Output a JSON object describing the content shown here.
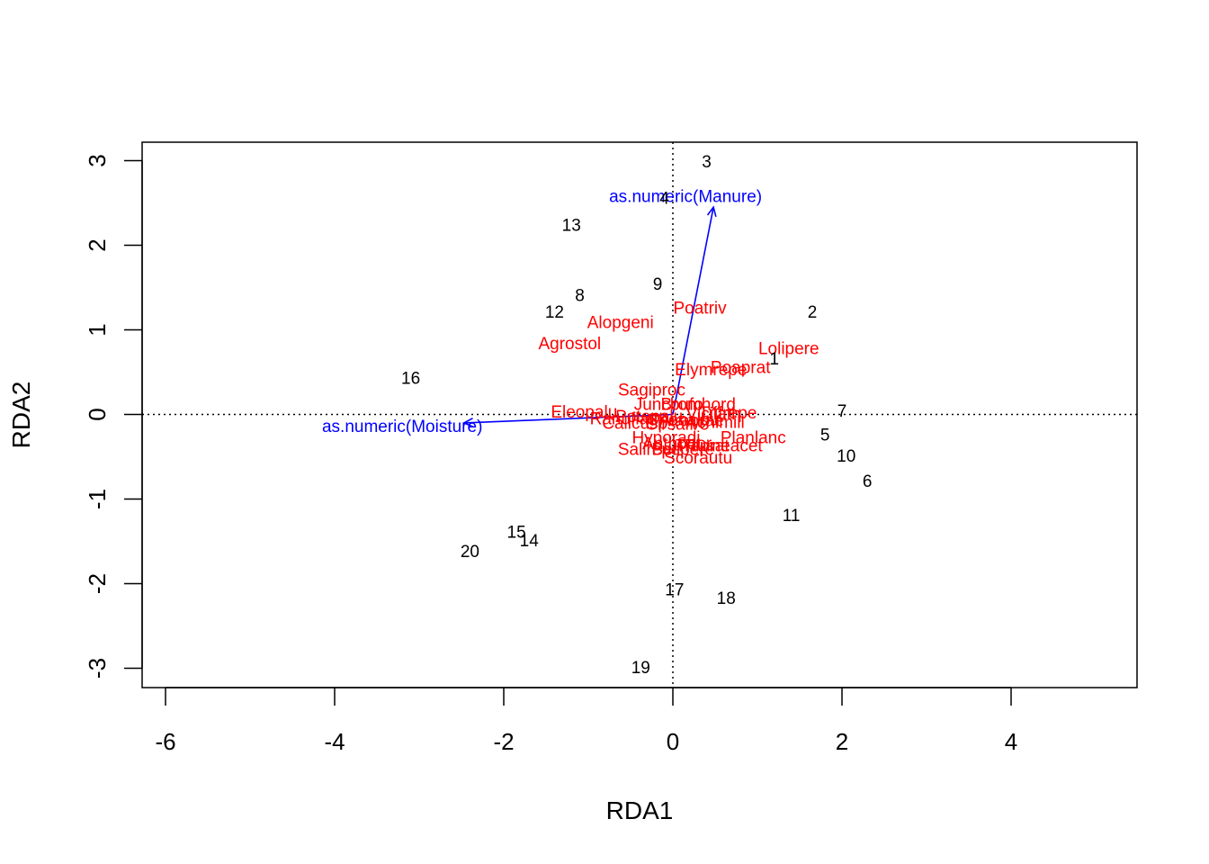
{
  "chart_data": {
    "type": "scatter",
    "subtype": "rda-triplot",
    "xlabel": "RDA1",
    "ylabel": "RDA2",
    "xlim": [
      -6.2,
      5.5
    ],
    "ylim": [
      -3.25,
      3.25
    ],
    "xticks": [
      -6,
      -4,
      -2,
      0,
      2,
      4
    ],
    "yticks": [
      -3,
      -2,
      -1,
      0,
      1,
      2,
      3
    ],
    "grid": false,
    "reference_lines": "dotted lines at x=0 and y=0",
    "colors": {
      "sites": "#000000",
      "species": "#ff0000",
      "biplot": "#0000ff",
      "axes": "#000000"
    },
    "sites": [
      {
        "label": "1",
        "x": 1.2,
        "y": 0.65
      },
      {
        "label": "2",
        "x": 1.65,
        "y": 1.2
      },
      {
        "label": "3",
        "x": 0.4,
        "y": 2.98
      },
      {
        "label": "4",
        "x": -0.1,
        "y": 2.55
      },
      {
        "label": "5",
        "x": 1.8,
        "y": -0.25
      },
      {
        "label": "6",
        "x": 2.3,
        "y": -0.8
      },
      {
        "label": "7",
        "x": 2.0,
        "y": 0.03
      },
      {
        "label": "8",
        "x": -1.1,
        "y": 1.4
      },
      {
        "label": "9",
        "x": -0.18,
        "y": 1.53
      },
      {
        "label": "10",
        "x": 2.05,
        "y": -0.5
      },
      {
        "label": "11",
        "x": 1.4,
        "y": -1.2
      },
      {
        "label": "12",
        "x": -1.4,
        "y": 1.2
      },
      {
        "label": "13",
        "x": -1.2,
        "y": 2.23
      },
      {
        "label": "14",
        "x": -1.7,
        "y": -1.5
      },
      {
        "label": "15",
        "x": -1.85,
        "y": -1.4
      },
      {
        "label": "16",
        "x": -3.1,
        "y": 0.42
      },
      {
        "label": "17",
        "x": 0.02,
        "y": -2.08
      },
      {
        "label": "18",
        "x": 0.63,
        "y": -2.18
      },
      {
        "label": "19",
        "x": -0.38,
        "y": -3.0
      },
      {
        "label": "20",
        "x": -2.4,
        "y": -1.63
      }
    ],
    "species": [
      {
        "label": "Poatriv",
        "x": 0.32,
        "y": 1.25
      },
      {
        "label": "Alopgeni",
        "x": -0.62,
        "y": 1.08
      },
      {
        "label": "Agrostol",
        "x": -1.22,
        "y": 0.83
      },
      {
        "label": "Lolipere",
        "x": 1.37,
        "y": 0.77
      },
      {
        "label": "Poaprat",
        "x": 0.8,
        "y": 0.55
      },
      {
        "label": "Elymrepe",
        "x": 0.45,
        "y": 0.52
      },
      {
        "label": "Sagiproc",
        "x": -0.25,
        "y": 0.28
      },
      {
        "label": "Juncbufo",
        "x": -0.05,
        "y": 0.11
      },
      {
        "label": "Bromhord",
        "x": 0.3,
        "y": 0.11
      },
      {
        "label": "Eleopalu",
        "x": -1.05,
        "y": 0.02
      },
      {
        "label": "Ranuflam",
        "x": -0.55,
        "y": -0.06
      },
      {
        "label": "Callcusp",
        "x": -0.45,
        "y": -0.11
      },
      {
        "label": "Potepalu",
        "x": -0.28,
        "y": -0.03
      },
      {
        "label": "Chenalbu",
        "x": 0.12,
        "y": -0.07
      },
      {
        "label": "Airaprae",
        "x": 0.22,
        "y": -0.08
      },
      {
        "label": "Vicilath",
        "x": 0.48,
        "y": 0.0
      },
      {
        "label": "Trifrepe",
        "x": 0.65,
        "y": 0.01
      },
      {
        "label": "Achimill",
        "x": 0.5,
        "y": -0.1
      },
      {
        "label": "Cirsarve",
        "x": 0.05,
        "y": -0.12
      },
      {
        "label": "Planlanc",
        "x": 0.95,
        "y": -0.28
      },
      {
        "label": "Hyporadi",
        "x": -0.08,
        "y": -0.28
      },
      {
        "label": "Anthodor",
        "x": 0.05,
        "y": -0.35
      },
      {
        "label": "Trifprat",
        "x": 0.35,
        "y": -0.38
      },
      {
        "label": "Bellpere",
        "x": 0.12,
        "y": -0.42
      },
      {
        "label": "Salirepe",
        "x": -0.28,
        "y": -0.42
      },
      {
        "label": "Rumeacet",
        "x": 0.6,
        "y": -0.38
      },
      {
        "label": "Scorautu",
        "x": 0.3,
        "y": -0.52
      }
    ],
    "biplot_arrows": [
      {
        "label": "as.numeric(Manure)",
        "x": 0.48,
        "y": 2.45,
        "label_x": 0.15,
        "label_y": 2.57
      },
      {
        "label": "as.numeric(Moisture)",
        "x": -2.47,
        "y": -0.1,
        "label_x": -3.2,
        "label_y": -0.15
      }
    ]
  }
}
